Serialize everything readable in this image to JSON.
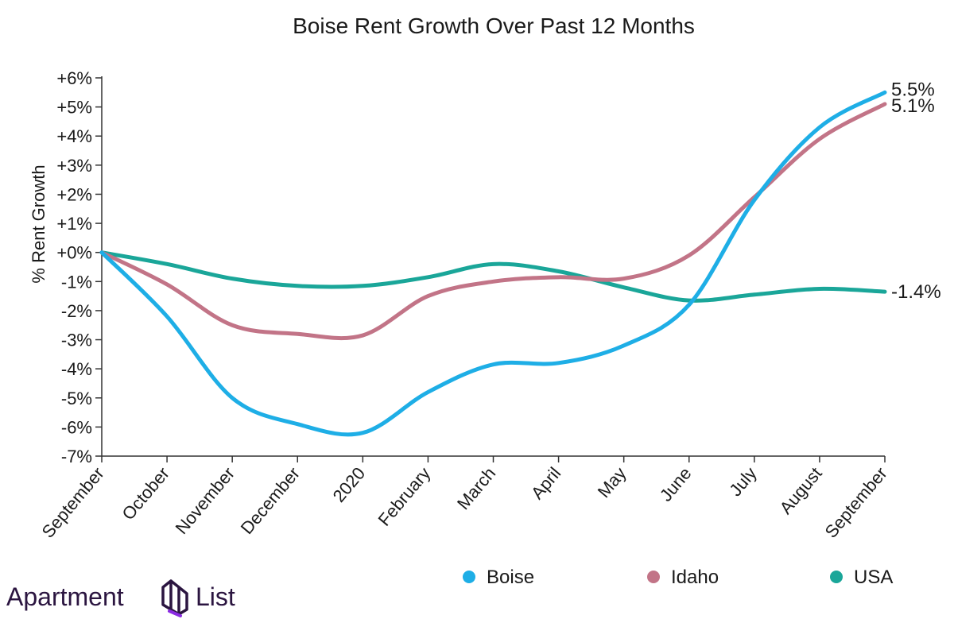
{
  "chart_data": {
    "type": "line",
    "title": "Boise Rent Growth Over Past 12 Months",
    "ylabel": "% Rent Growth",
    "xlabel": "",
    "ylim": [
      -7,
      6
    ],
    "grid": false,
    "legend_position": "bottom",
    "categories": [
      "September",
      "October",
      "November",
      "December",
      "2020",
      "February",
      "March",
      "April",
      "May",
      "June",
      "July",
      "August",
      "September"
    ],
    "y_ticks": [
      6,
      5,
      4,
      3,
      2,
      1,
      0,
      -1,
      -2,
      -3,
      -4,
      -5,
      -6,
      -7
    ],
    "y_tick_labels": [
      "+6%",
      "+5%",
      "+4%",
      "+3%",
      "+2%",
      "+1%",
      "+0%",
      "-1%",
      "-2%",
      "-3%",
      "-4%",
      "-5%",
      "-6%",
      "-7%"
    ],
    "series": [
      {
        "name": "Boise",
        "color": "#1eaee6",
        "end_label": "5.5%",
        "values": [
          0,
          -2.2,
          -5.0,
          -5.9,
          -6.2,
          -4.8,
          -3.85,
          -3.8,
          -3.2,
          -1.8,
          1.8,
          4.3,
          5.5
        ]
      },
      {
        "name": "Idaho",
        "color": "#c27487",
        "end_label": "5.1%",
        "values": [
          0,
          -1.1,
          -2.5,
          -2.8,
          -2.85,
          -1.5,
          -1.0,
          -0.85,
          -0.9,
          -0.1,
          1.9,
          3.9,
          5.1
        ]
      },
      {
        "name": "USA",
        "color": "#1aa699",
        "end_label": "-1.4%",
        "values": [
          0,
          -0.4,
          -0.9,
          -1.15,
          -1.15,
          -0.85,
          -0.4,
          -0.65,
          -1.2,
          -1.65,
          -1.45,
          -1.25,
          -1.35
        ]
      }
    ]
  },
  "brand": {
    "name_part1": "Apartment",
    "name_part2": "List",
    "logo_icon": "apartment-list-logo-icon",
    "color": "#2b1540"
  }
}
